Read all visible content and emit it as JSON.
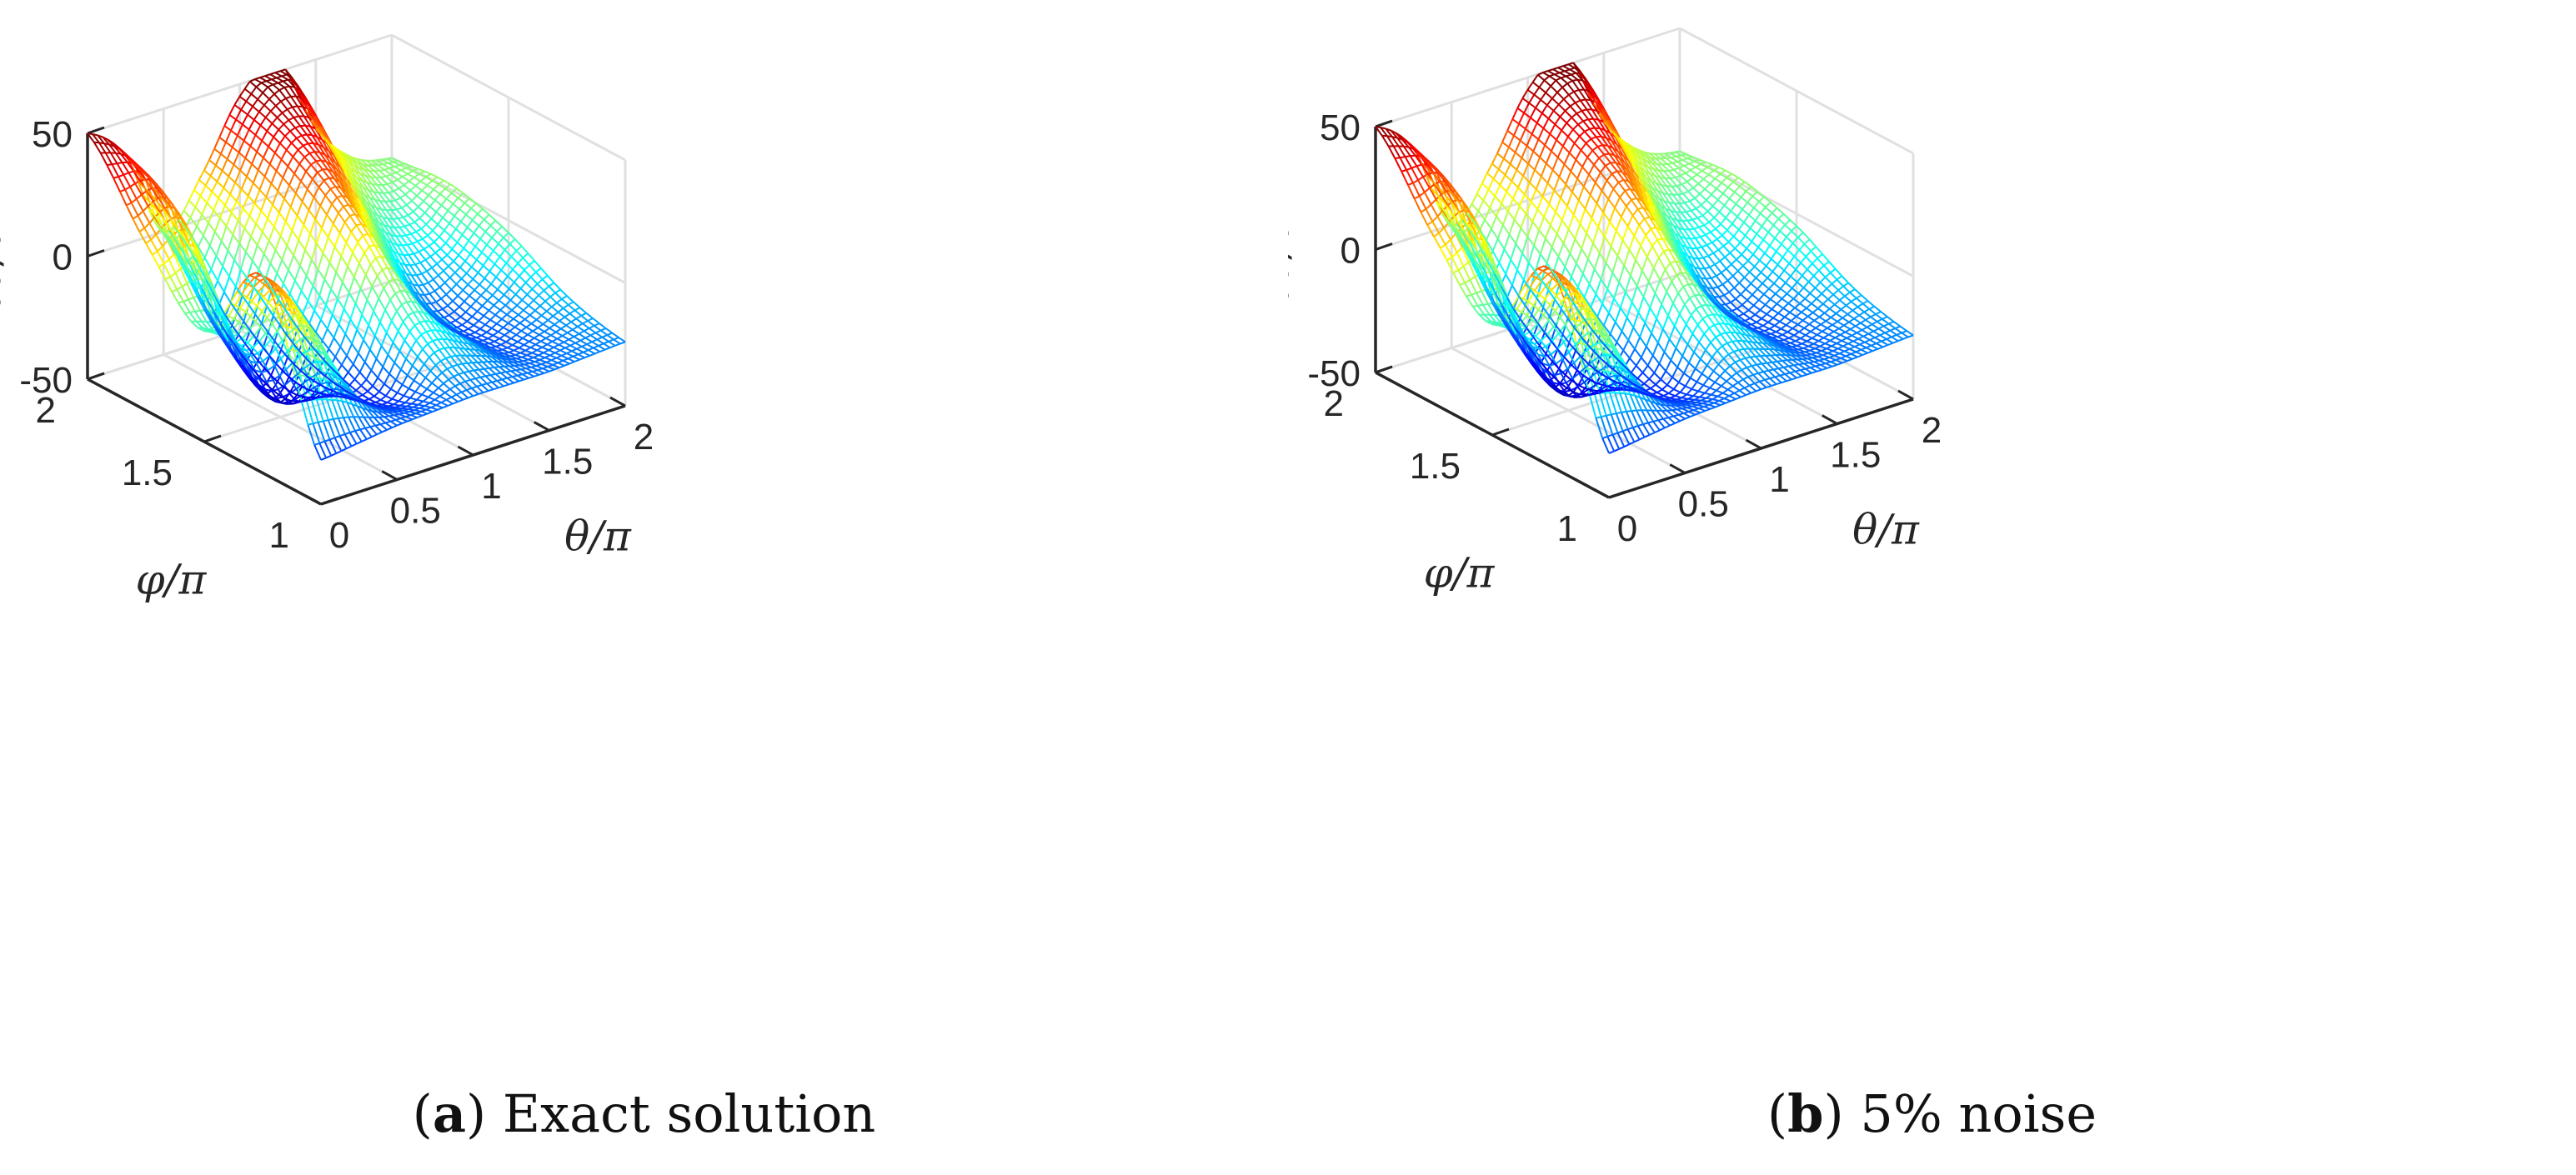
{
  "chart_data": [
    {
      "id": "a",
      "type": "surface",
      "caption_letter": "a",
      "caption_text": "Exact solution",
      "xlabel": "θ/π",
      "ylabel": "φ/π",
      "zlabel": "∂u/∂n",
      "xlim": [
        0,
        2
      ],
      "ylim": [
        1,
        2
      ],
      "zlim": [
        -50,
        50
      ],
      "x_ticks": [
        "0",
        "0.5",
        "1",
        "1.5",
        "2"
      ],
      "y_ticks": [
        "1",
        "1.5",
        "2"
      ],
      "z_ticks": [
        "-50",
        "0",
        "50"
      ],
      "grid": true,
      "colormap": "jet",
      "noise_percent": 0,
      "surface_rows_phi": [
        1,
        1.25,
        1.5,
        1.75,
        2
      ],
      "surface_cols_theta": [
        0,
        0.25,
        0.5,
        0.75,
        1,
        1.25,
        1.5,
        1.75,
        2
      ],
      "z_values": [
        [
          -32,
          -30,
          -28,
          -27,
          -26,
          -26,
          -26,
          -25,
          -24
        ],
        [
          30,
          10,
          -26,
          -33,
          -10,
          -17,
          -29,
          -25,
          -18
        ],
        [
          -5,
          -18,
          -44,
          -18,
          18,
          -5,
          -27,
          -20,
          -5
        ],
        [
          18,
          22,
          -30,
          5,
          36,
          28,
          -2,
          -9,
          2
        ],
        [
          50,
          36,
          0,
          18,
          45,
          54,
          22,
          5,
          0
        ]
      ]
    },
    {
      "id": "b",
      "type": "surface",
      "caption_letter": "b",
      "caption_text": "5% noise",
      "xlabel": "θ/π",
      "ylabel": "φ/π",
      "zlabel": "∂u/∂n",
      "xlim": [
        0,
        2
      ],
      "ylim": [
        1,
        2
      ],
      "zlim": [
        -50,
        50
      ],
      "x_ticks": [
        "0",
        "0.5",
        "1",
        "1.5",
        "2"
      ],
      "y_ticks": [
        "1",
        "1.5",
        "2"
      ],
      "z_ticks": [
        "-50",
        "0",
        "50"
      ],
      "grid": true,
      "colormap": "jet",
      "noise_percent": 5,
      "surface_rows_phi": [
        1,
        1.25,
        1.5,
        1.75,
        2
      ],
      "surface_cols_theta": [
        0,
        0.25,
        0.5,
        0.75,
        1,
        1.25,
        1.5,
        1.75,
        2
      ],
      "z_values": [
        [
          -32,
          -30,
          -28,
          -27,
          -26,
          -26,
          -26,
          -25,
          -24
        ],
        [
          30,
          10,
          -26,
          -33,
          -10,
          -17,
          -29,
          -25,
          -18
        ],
        [
          -5,
          -18,
          -44,
          -18,
          18,
          -5,
          -27,
          -20,
          -5
        ],
        [
          18,
          22,
          -30,
          5,
          36,
          28,
          -2,
          -9,
          2
        ],
        [
          50,
          36,
          0,
          18,
          45,
          54,
          22,
          5,
          0
        ]
      ]
    }
  ]
}
